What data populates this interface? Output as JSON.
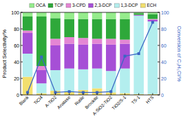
{
  "chart_data": {
    "type": "bar",
    "stacked": true,
    "legend": "top",
    "y_label": "Product Selectivity/%",
    "y2_label": "Conversion of C₃H₅Cl/%",
    "categories": [
      "Blank",
      "TiCl4",
      "A-TiO2",
      "Anatase",
      "Rutile",
      "Brookite",
      "A-SiO2-TiO2",
      "TiO2/S-1",
      "TS-1",
      "HTS"
    ],
    "ylim": [
      0,
      100
    ],
    "yticks": [
      0,
      20,
      40,
      60,
      80,
      100
    ],
    "y2lim": [
      0,
      100
    ],
    "y2ticks": [
      0,
      20,
      40,
      60,
      80,
      100
    ],
    "series": [
      {
        "name": "ECH",
        "color": "#f2df6e",
        "values": [
          22,
          2,
          5,
          4,
          6,
          8,
          3,
          2,
          1,
          1
        ]
      },
      {
        "name": "1,3-DCP",
        "color": "#b3eeee",
        "values": [
          28,
          12,
          25,
          28,
          25,
          24,
          26,
          30,
          95,
          88
        ]
      },
      {
        "name": "2,3-DCP",
        "color": "#a64fd6",
        "values": [
          25,
          16,
          30,
          30,
          30,
          30,
          32,
          30,
          1,
          2
        ]
      },
      {
        "name": "3-CPD",
        "color": "#e486d4",
        "values": [
          3,
          5,
          8,
          8,
          8,
          6,
          7,
          5,
          0,
          1
        ]
      },
      {
        "name": "TCP",
        "color": "#2ea83a",
        "values": [
          17,
          60,
          25,
          22,
          23,
          24,
          24,
          25,
          2,
          6
        ]
      },
      {
        "name": "OCA",
        "color": "#95ec8c",
        "values": [
          5,
          5,
          7,
          8,
          8,
          8,
          8,
          8,
          1,
          2
        ]
      },
      {
        "type": "line",
        "axis": "y2",
        "color": "#3a66c4",
        "marker": "square",
        "values": [
          3,
          46,
          3,
          4,
          3,
          3,
          4,
          47,
          50,
          88
        ]
      }
    ]
  }
}
